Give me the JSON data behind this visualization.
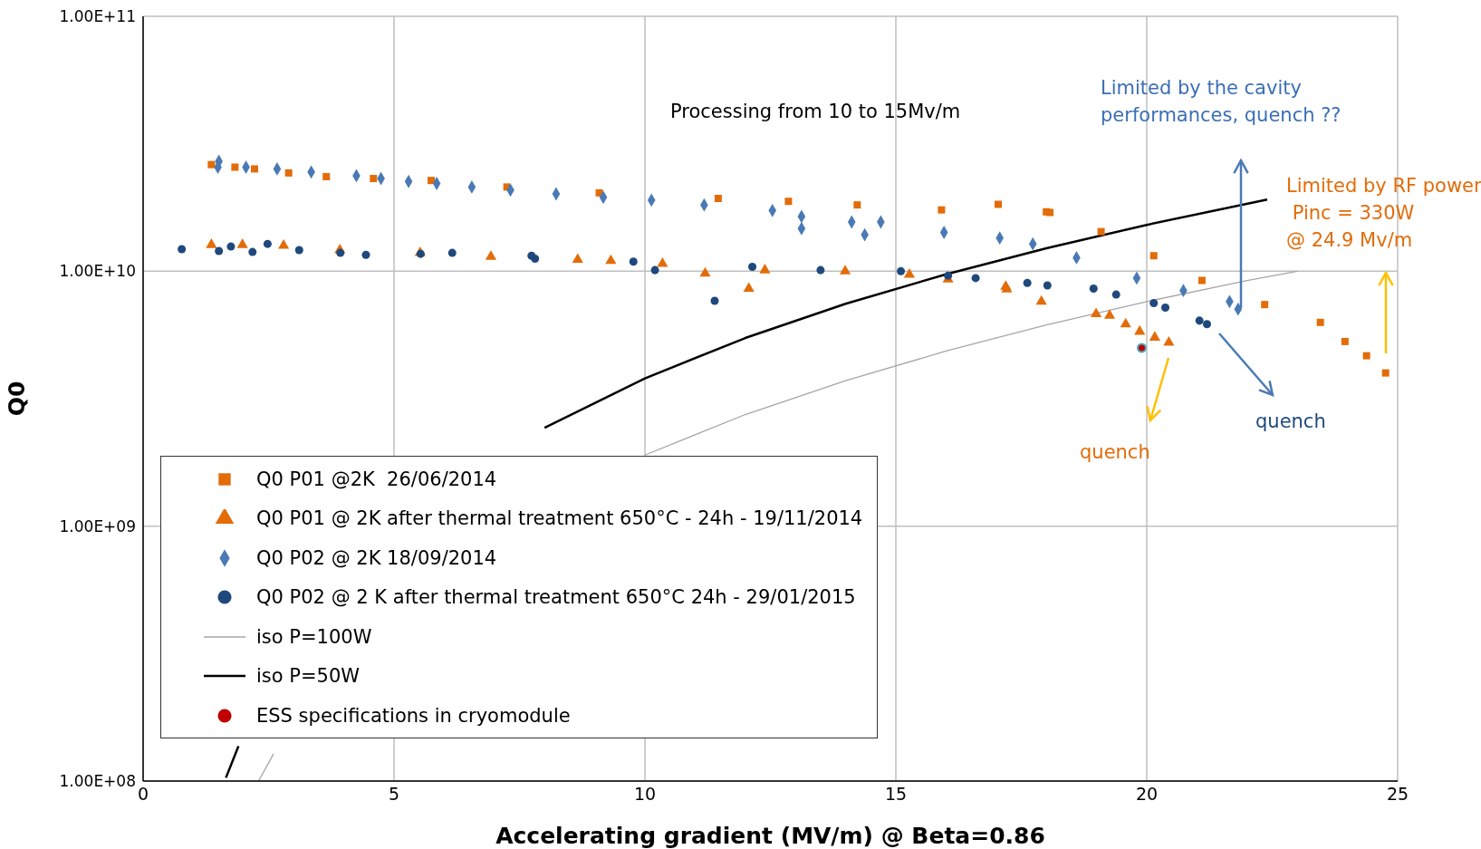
{
  "chart_data": {
    "type": "scatter",
    "xlabel": "Accelerating gradient (MV/m)  @ Beta=0.86",
    "ylabel": "Q0",
    "xlim": [
      0,
      25
    ],
    "xticks": [
      0,
      5,
      10,
      15,
      20,
      25
    ],
    "ylim": [
      100000000,
      100000000000
    ],
    "log": true,
    "yticks": [
      {
        "value": 100000000,
        "label": "1.00E+08"
      },
      {
        "value": 1000000000,
        "label": "1.00E+09"
      },
      {
        "value": 10000000000,
        "label": "1.00E+10"
      },
      {
        "value": 100000000000,
        "label": "1.00E+11"
      }
    ],
    "grid": true,
    "legend": "bottom left",
    "series": [
      {
        "name": "Q0 P01 @2K  26/06/2014",
        "type": "scatter",
        "marker": "square",
        "color": "#e36c09",
        "x": [
          1.36,
          1.83,
          2.22,
          2.9,
          3.65,
          4.59,
          5.74,
          7.25,
          9.09,
          11.46,
          12.86,
          14.23,
          15.91,
          17.04,
          18.0,
          18.07,
          19.09,
          20.14,
          21.1,
          22.35,
          23.46,
          23.95,
          24.38,
          24.76
        ],
        "values": [
          26200000000,
          25600000000,
          25200000000,
          24300000000,
          23500000000,
          23100000000,
          22700000000,
          21400000000,
          20300000000,
          19300000000,
          18800000000,
          18200000000,
          17400000000,
          18300000000,
          17100000000,
          17000000000,
          14300000000,
          11500000000,
          9200000000,
          7400000000,
          6300000000,
          5300000000,
          4660000000,
          3990000000
        ]
      },
      {
        "name": "Q0 P01 @ 2K after thermal treatment 650°C - 24h - 19/11/2014",
        "type": "scatter",
        "marker": "triangle",
        "color": "#e36c09",
        "x": [
          1.36,
          1.98,
          2.8,
          3.92,
          5.52,
          6.93,
          8.66,
          9.32,
          10.35,
          11.2,
          12.07,
          12.39,
          13.99,
          15.27,
          16.04,
          17.19,
          17.21,
          17.9,
          18.99,
          19.26,
          19.58,
          19.86,
          20.16,
          20.44
        ],
        "values": [
          12700000000,
          12700000000,
          12600000000,
          12100000000,
          11800000000,
          11400000000,
          11100000000,
          11000000000,
          10700000000,
          9800000000,
          8550000000,
          10100000000,
          10000000000,
          9700000000,
          9300000000,
          8700000000,
          8500000000,
          7600000000,
          6800000000,
          6700000000,
          6200000000,
          5800000000,
          5500000000,
          5250000000
        ]
      },
      {
        "name": "Q0 P02 @ 2K 18/09/2014",
        "type": "scatter",
        "marker": "diamond",
        "color": "#4a7ab5",
        "x": [
          1.49,
          1.51,
          2.05,
          2.67,
          3.35,
          4.25,
          4.74,
          5.29,
          5.85,
          6.55,
          7.32,
          8.23,
          9.17,
          10.13,
          11.18,
          12.54,
          13.12,
          13.12,
          14.12,
          14.38,
          14.7,
          15.96,
          17.07,
          17.73,
          18.6,
          19.8,
          20.73,
          21.65,
          21.82
        ],
        "values": [
          25600000000,
          27000000000,
          25600000000,
          25200000000,
          24500000000,
          23700000000,
          23100000000,
          22500000000,
          22100000000,
          21400000000,
          20800000000,
          20100000000,
          19500000000,
          19000000000,
          18200000000,
          17300000000,
          16400000000,
          14700000000,
          15600000000,
          13900000000,
          15600000000,
          14200000000,
          13500000000,
          12800000000,
          11300000000,
          9400000000,
          8400000000,
          7600000000,
          7100000000
        ]
      },
      {
        "name": "Q0 P02 @ 2 K after thermal treatment 650°C 24h - 29/01/2015",
        "type": "scatter",
        "marker": "circle",
        "color": "#1f497d",
        "x": [
          0.77,
          1.51,
          1.75,
          2.18,
          2.48,
          3.11,
          3.93,
          4.44,
          5.53,
          6.16,
          7.74,
          7.81,
          9.77,
          10.2,
          11.39,
          12.14,
          13.5,
          15.1,
          16.04,
          16.59,
          17.62,
          18.02,
          18.94,
          19.39,
          20.14,
          20.37,
          21.05,
          21.2
        ],
        "values": [
          12200000000,
          12000000000,
          12500000000,
          11900000000,
          12800000000,
          12100000000,
          11800000000,
          11600000000,
          11700000000,
          11800000000,
          11500000000,
          11200000000,
          10900000000,
          10100000000,
          7650000000,
          10400000000,
          10100000000,
          10000000000,
          9600000000,
          9400000000,
          9000000000,
          8800000000,
          8550000000,
          8100000000,
          7500000000,
          7200000000,
          6400000000,
          6200000000
        ]
      },
      {
        "name": "iso P=100W",
        "type": "line",
        "marker": "none",
        "color": "#a6a6a6",
        "x": [
          2.3,
          2.6,
          3,
          4,
          5,
          6,
          8,
          10,
          12,
          14,
          16,
          18,
          20,
          22,
          23
        ],
        "values": [
          100000000,
          128000000,
          null,
          null,
          null,
          null,
          null,
          1900000000,
          2740000000,
          3720000000,
          4860000000,
          6160000000,
          7600000000,
          9200000000,
          10000000000
        ]
      },
      {
        "name": "iso P=50W",
        "type": "line",
        "marker": "none",
        "color": "#000000",
        "x": [
          1.65,
          1.9,
          3,
          4,
          5,
          6,
          8,
          10,
          12,
          14,
          16,
          18,
          20,
          22.4
        ],
        "values": [
          103000000,
          137000000,
          null,
          null,
          null,
          null,
          2430000000,
          3800000000,
          5470000000,
          7450000000,
          9730000000,
          12300000000,
          15200000000,
          19100000000
        ]
      },
      {
        "name": "ESS specifications in cryomodule",
        "type": "scatter",
        "marker": "circle",
        "color": "#c00000",
        "x": [
          19.9
        ],
        "values": [
          5000000000
        ]
      }
    ],
    "annotations": [
      "Processing from 10 to 15Mv/m",
      "Limited by the cavity\nperformances, quench ??",
      "Limited by RF power\n Pinc = 330W\n@ 24.9 Mv/m",
      "quench",
      "quench"
    ]
  }
}
